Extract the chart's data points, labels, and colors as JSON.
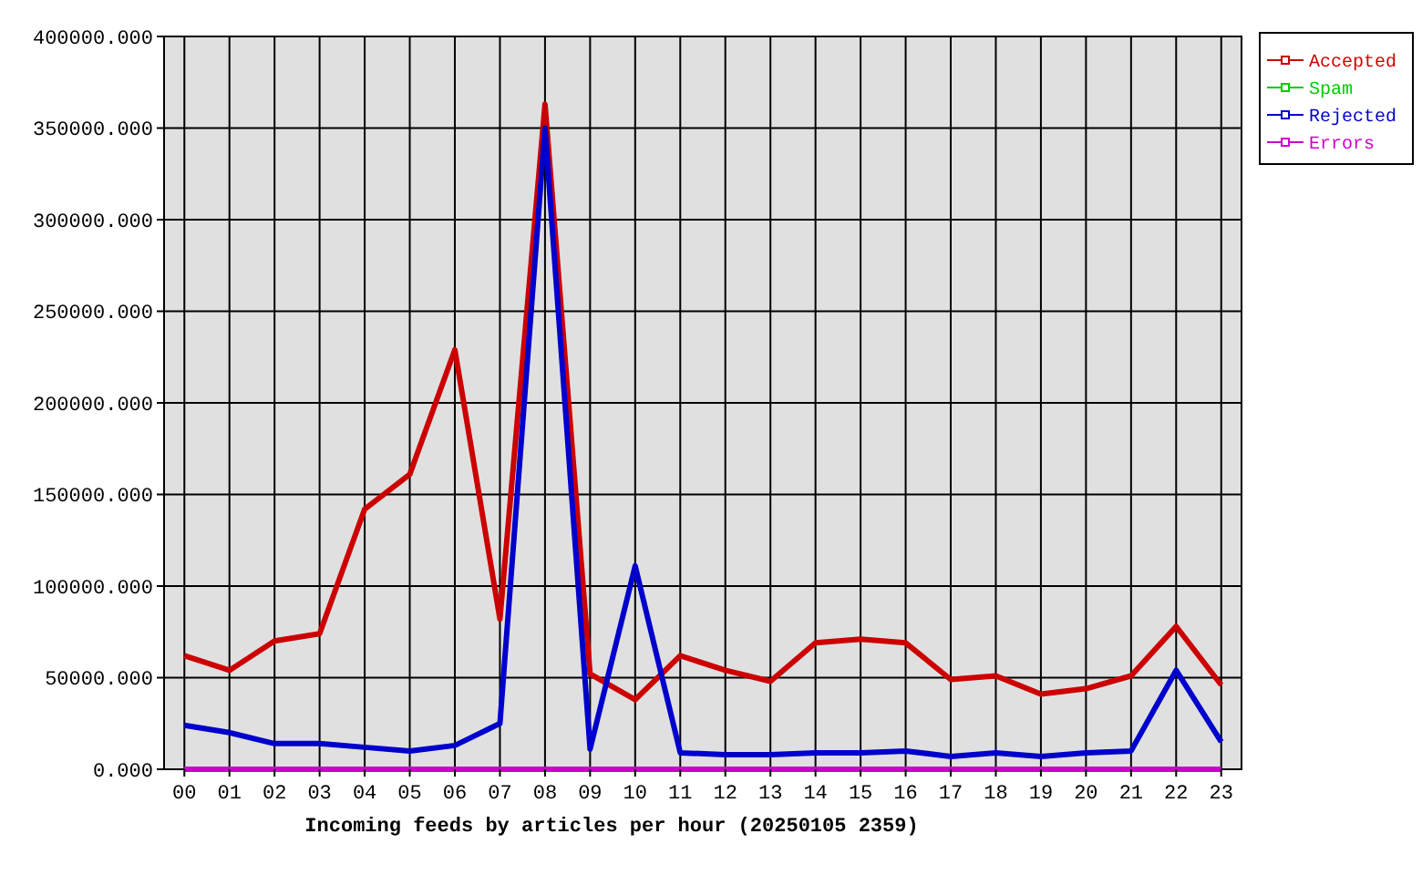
{
  "chart_data": {
    "type": "line",
    "xlabel": "Incoming feeds by articles per hour (20250105 2359)",
    "categories": [
      "00",
      "01",
      "02",
      "03",
      "04",
      "05",
      "06",
      "07",
      "08",
      "09",
      "10",
      "11",
      "12",
      "13",
      "14",
      "15",
      "16",
      "17",
      "18",
      "19",
      "20",
      "21",
      "22",
      "23"
    ],
    "series": [
      {
        "name": "Accepted",
        "color": "#cc0000",
        "values": [
          62000,
          54000,
          70000,
          74000,
          142000,
          161000,
          229000,
          82000,
          363000,
          52000,
          38000,
          62000,
          54000,
          48000,
          69000,
          71000,
          69000,
          49000,
          51000,
          41000,
          44000,
          51000,
          78000,
          46000
        ]
      },
      {
        "name": "Spam",
        "color": "#00cc00",
        "values": [
          null,
          null,
          null,
          null,
          null,
          null,
          null,
          null,
          null,
          null,
          null,
          null,
          null,
          null,
          null,
          null,
          null,
          null,
          null,
          null,
          null,
          null,
          null,
          null
        ]
      },
      {
        "name": "Rejected",
        "color": "#0000cc",
        "values": [
          24000,
          20000,
          14000,
          14000,
          12000,
          10000,
          13000,
          25000,
          350000,
          11000,
          111000,
          9000,
          8000,
          8000,
          9000,
          9000,
          10000,
          7000,
          9000,
          7000,
          9000,
          10000,
          54000,
          15000
        ]
      },
      {
        "name": "Errors",
        "color": "#cc00cc",
        "values": [
          0,
          0,
          0,
          0,
          0,
          0,
          0,
          0,
          0,
          0,
          0,
          0,
          0,
          0,
          0,
          0,
          0,
          0,
          0,
          0,
          0,
          0,
          0,
          0
        ]
      }
    ],
    "ylim": [
      0,
      400000
    ],
    "yticks": [
      {
        "value": 0,
        "label": "0.000"
      },
      {
        "value": 50000,
        "label": "50000.000"
      },
      {
        "value": 100000,
        "label": "100000.000"
      },
      {
        "value": 150000,
        "label": "150000.000"
      },
      {
        "value": 200000,
        "label": "200000.000"
      },
      {
        "value": 250000,
        "label": "250000.000"
      },
      {
        "value": 300000,
        "label": "300000.000"
      },
      {
        "value": 350000,
        "label": "350000.000"
      },
      {
        "value": 400000,
        "label": "400000.000"
      }
    ],
    "grid": true,
    "legend": "top right"
  }
}
